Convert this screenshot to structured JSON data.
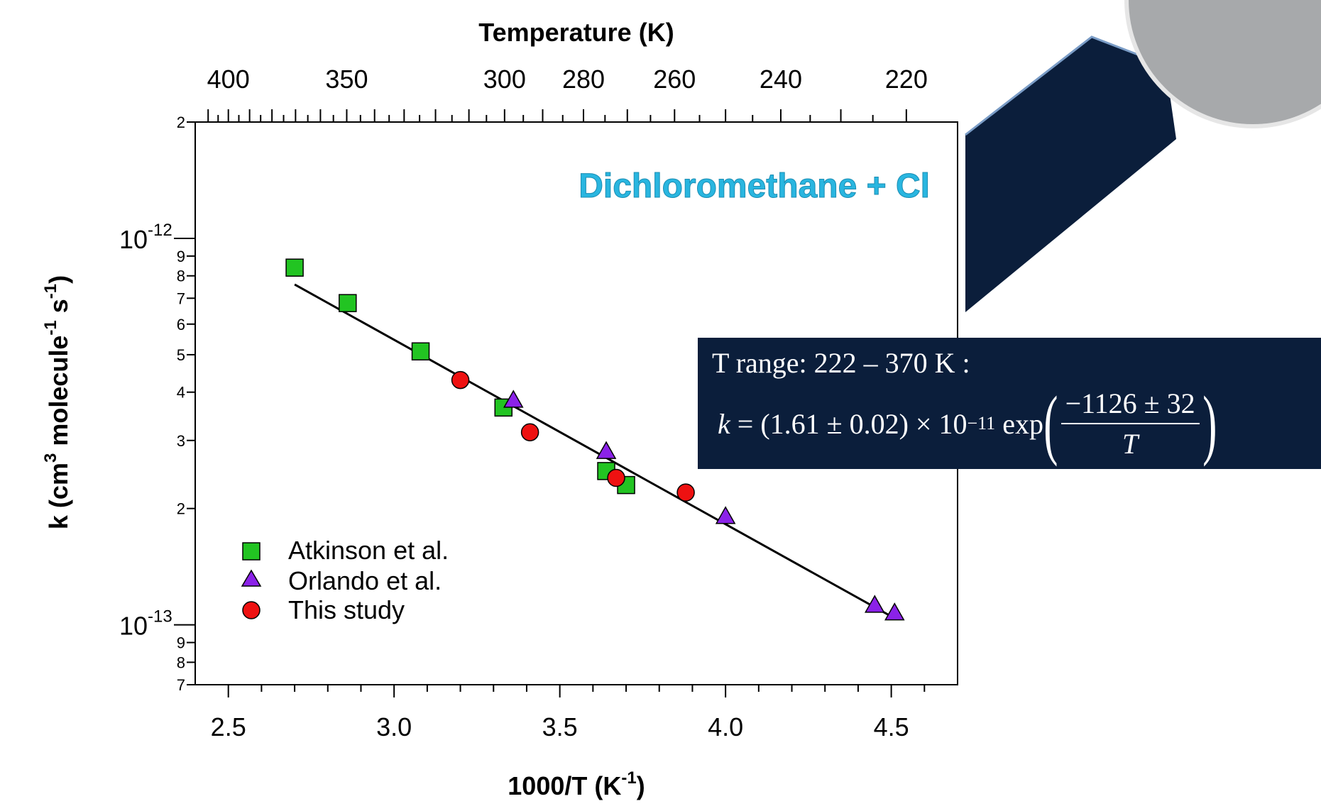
{
  "chart_data": {
    "type": "scatter",
    "title": "Dichloromethane + Cl",
    "xlabel": "1000/T (K-1)",
    "ylabel": "k (cm3 molecule-1 s-1)",
    "top_axis_label": "Temperature (K)",
    "xlim": [
      2.4,
      4.7
    ],
    "ylim": [
      7e-14,
      2e-12
    ],
    "yscale": "log",
    "x_ticks": [
      "2.5",
      "3.0",
      "3.5",
      "4.0",
      "4.5"
    ],
    "top_ticks": [
      {
        "label": "400",
        "T": 400
      },
      {
        "label": "350",
        "T": 350
      },
      {
        "label": "300",
        "T": 300
      },
      {
        "label": "280",
        "T": 280
      },
      {
        "label": "260",
        "T": 260
      },
      {
        "label": "240",
        "T": 240
      },
      {
        "label": "220",
        "T": 220
      }
    ],
    "y_major_ticks": [
      {
        "base": "10",
        "exp": "-12",
        "value": 1e-12
      },
      {
        "base": "10",
        "exp": "-13",
        "value": 1e-13
      }
    ],
    "y_top_label": "2",
    "y_minor_labels_upper": [
      "9",
      "8",
      "7",
      "6",
      "5",
      "4",
      "3",
      "2"
    ],
    "y_minor_labels_lower": [
      "9",
      "8",
      "7"
    ],
    "series": [
      {
        "name": "Atkinson et al.",
        "marker": "square",
        "color": "#22c422",
        "points": [
          [
            2.7,
            8.4e-13
          ],
          [
            2.86,
            6.8e-13
          ],
          [
            3.08,
            5.1e-13
          ],
          [
            3.33,
            3.65e-13
          ],
          [
            3.64,
            2.5e-13
          ],
          [
            3.7,
            2.3e-13
          ]
        ]
      },
      {
        "name": "Orlando et al.",
        "marker": "triangle",
        "color": "#8b22e8",
        "points": [
          [
            3.36,
            3.8e-13
          ],
          [
            3.64,
            2.8e-13
          ],
          [
            4.0,
            1.9e-13
          ],
          [
            4.45,
            1.12e-13
          ],
          [
            4.51,
            1.07e-13
          ]
        ]
      },
      {
        "name": "This study",
        "marker": "circle",
        "color": "#ee1111",
        "points": [
          [
            3.2,
            4.3e-13
          ],
          [
            3.41,
            3.15e-13
          ],
          [
            3.67,
            2.4e-13
          ],
          [
            3.88,
            2.2e-13
          ]
        ]
      }
    ],
    "fit_line": {
      "x": [
        2.7,
        4.51
      ],
      "y": [
        7.6e-13,
        1.04e-13
      ]
    },
    "legend_position": "bottom-left",
    "grid": false
  },
  "equation": {
    "range": "T range: 222 – 370 K :",
    "k": "k",
    "rhs": "= (1.61 ± 0.02) × 10",
    "exp": "−11",
    "func": "exp",
    "numerator": "−1126 ± 32",
    "denominator": "T"
  },
  "colors": {
    "title": "#29b6e0",
    "panel": "#0b1e3b"
  }
}
